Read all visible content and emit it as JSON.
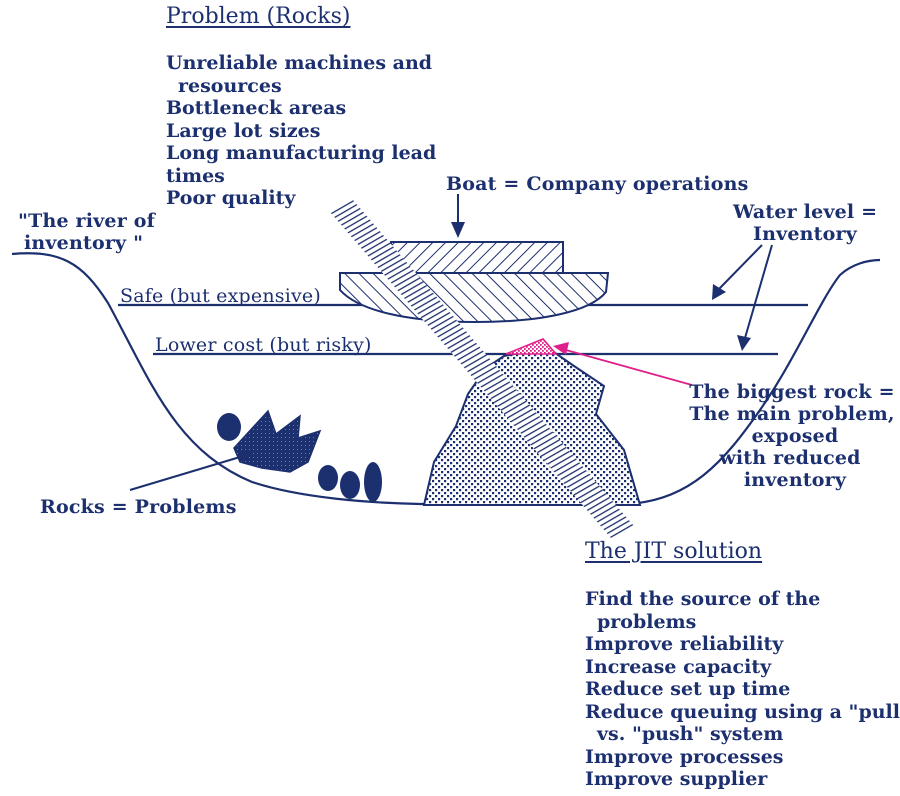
{
  "problem": {
    "heading": "Problem (Rocks)",
    "items": [
      {
        "line1": "Unreliable machines and",
        "line2": "resources"
      },
      {
        "line1": "Bottleneck areas",
        "line2": ""
      },
      {
        "line1": "Large lot sizes",
        "line2": ""
      },
      {
        "line1": "Long manufacturing lead",
        "line2": ""
      },
      {
        "line1": "times",
        "line2": ""
      },
      {
        "line1": "Poor quality",
        "line2": ""
      }
    ]
  },
  "labels": {
    "boat": "Boat = Company operations",
    "river_line1": "\"The river of",
    "river_line2": "inventory \"",
    "water_line1": "Water level =",
    "water_line2": "Inventory",
    "safe": "Safe (but expensive)",
    "lower": "Lower cost (but risky)",
    "rock_line1": "The biggest rock =",
    "rock_line2": "The main problem,",
    "rock_line3": "exposed",
    "rock_line4": "with reduced",
    "rock_line5": "inventory",
    "rocks": "Rocks = Problems"
  },
  "jit": {
    "heading": "The JIT solution",
    "items": [
      {
        "line1": "Find the source of the",
        "line2": "problems"
      },
      {
        "line1": "Improve reliability",
        "line2": ""
      },
      {
        "line1": "Increase capacity",
        "line2": ""
      },
      {
        "line1": "Reduce set up time",
        "line2": ""
      },
      {
        "line1": "Reduce queuing using a \"pull\"",
        "line2": "vs. \"push\" system"
      },
      {
        "line1": "Improve processes",
        "line2": ""
      },
      {
        "line1": "Improve supplier",
        "line2": ""
      }
    ]
  },
  "colors": {
    "ink": "#1c2f6e",
    "highlight": "#e0208a",
    "background": "#ffffff"
  }
}
